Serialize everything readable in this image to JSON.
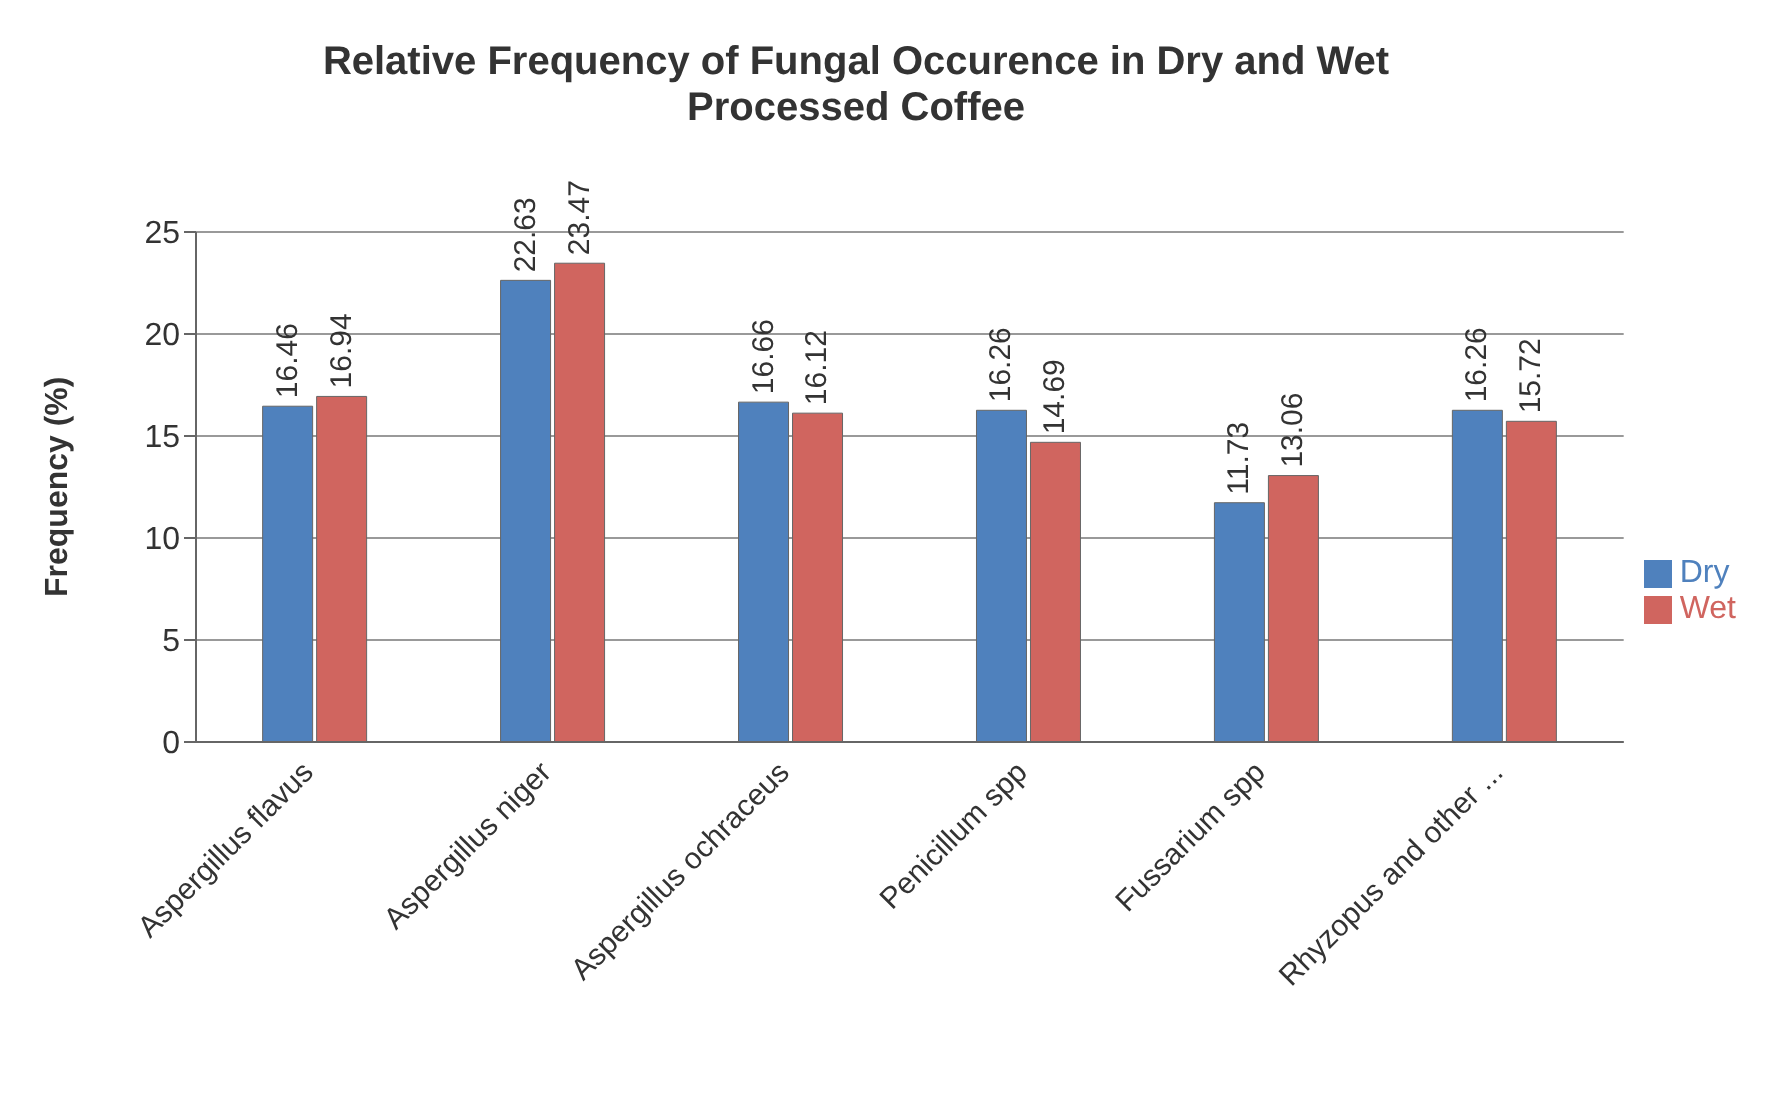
{
  "chart_data": {
    "type": "bar",
    "title": "Relative Frequency of Fungal Occurence in Dry and Wet Processed Coffee",
    "ylabel": "Frequency (%)",
    "categories": [
      "Aspergillus flavus",
      "Aspergillus niger",
      "Aspergillus ochraceus",
      "Penicillum spp",
      "Fussarium spp",
      "Rhyzopus and other ..."
    ],
    "series": [
      {
        "name": "Dry",
        "color": "#4f81bd",
        "values": [
          16.46,
          22.63,
          16.66,
          16.26,
          11.73,
          16.26
        ]
      },
      {
        "name": "Wet",
        "color": "#d0655f",
        "values": [
          16.94,
          23.47,
          16.12,
          14.69,
          13.06,
          15.72
        ]
      }
    ],
    "ylim": [
      0,
      25
    ],
    "yticks": [
      0,
      5,
      10,
      15,
      20,
      25
    ],
    "grid": "y",
    "legend": "right",
    "data_labels": true
  }
}
